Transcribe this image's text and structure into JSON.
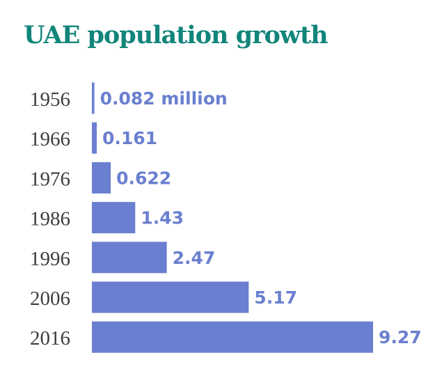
{
  "chart_data": {
    "type": "bar",
    "orientation": "horizontal",
    "title": "UAE population growth",
    "categories": [
      "1956",
      "1966",
      "1976",
      "1986",
      "1996",
      "2006",
      "2016"
    ],
    "values": [
      0.082,
      0.161,
      0.622,
      1.43,
      2.47,
      5.17,
      9.27
    ],
    "value_labels": [
      "0.082 million",
      "0.161",
      "0.622",
      "1.43",
      "2.47",
      "5.17",
      "9.27"
    ],
    "unit": "million",
    "xlabel": "",
    "ylabel": "",
    "xlim": [
      0,
      9.27
    ],
    "grid": false,
    "legend": "none",
    "bar_color": "#6a7fcf",
    "title_color": "#11857a"
  }
}
